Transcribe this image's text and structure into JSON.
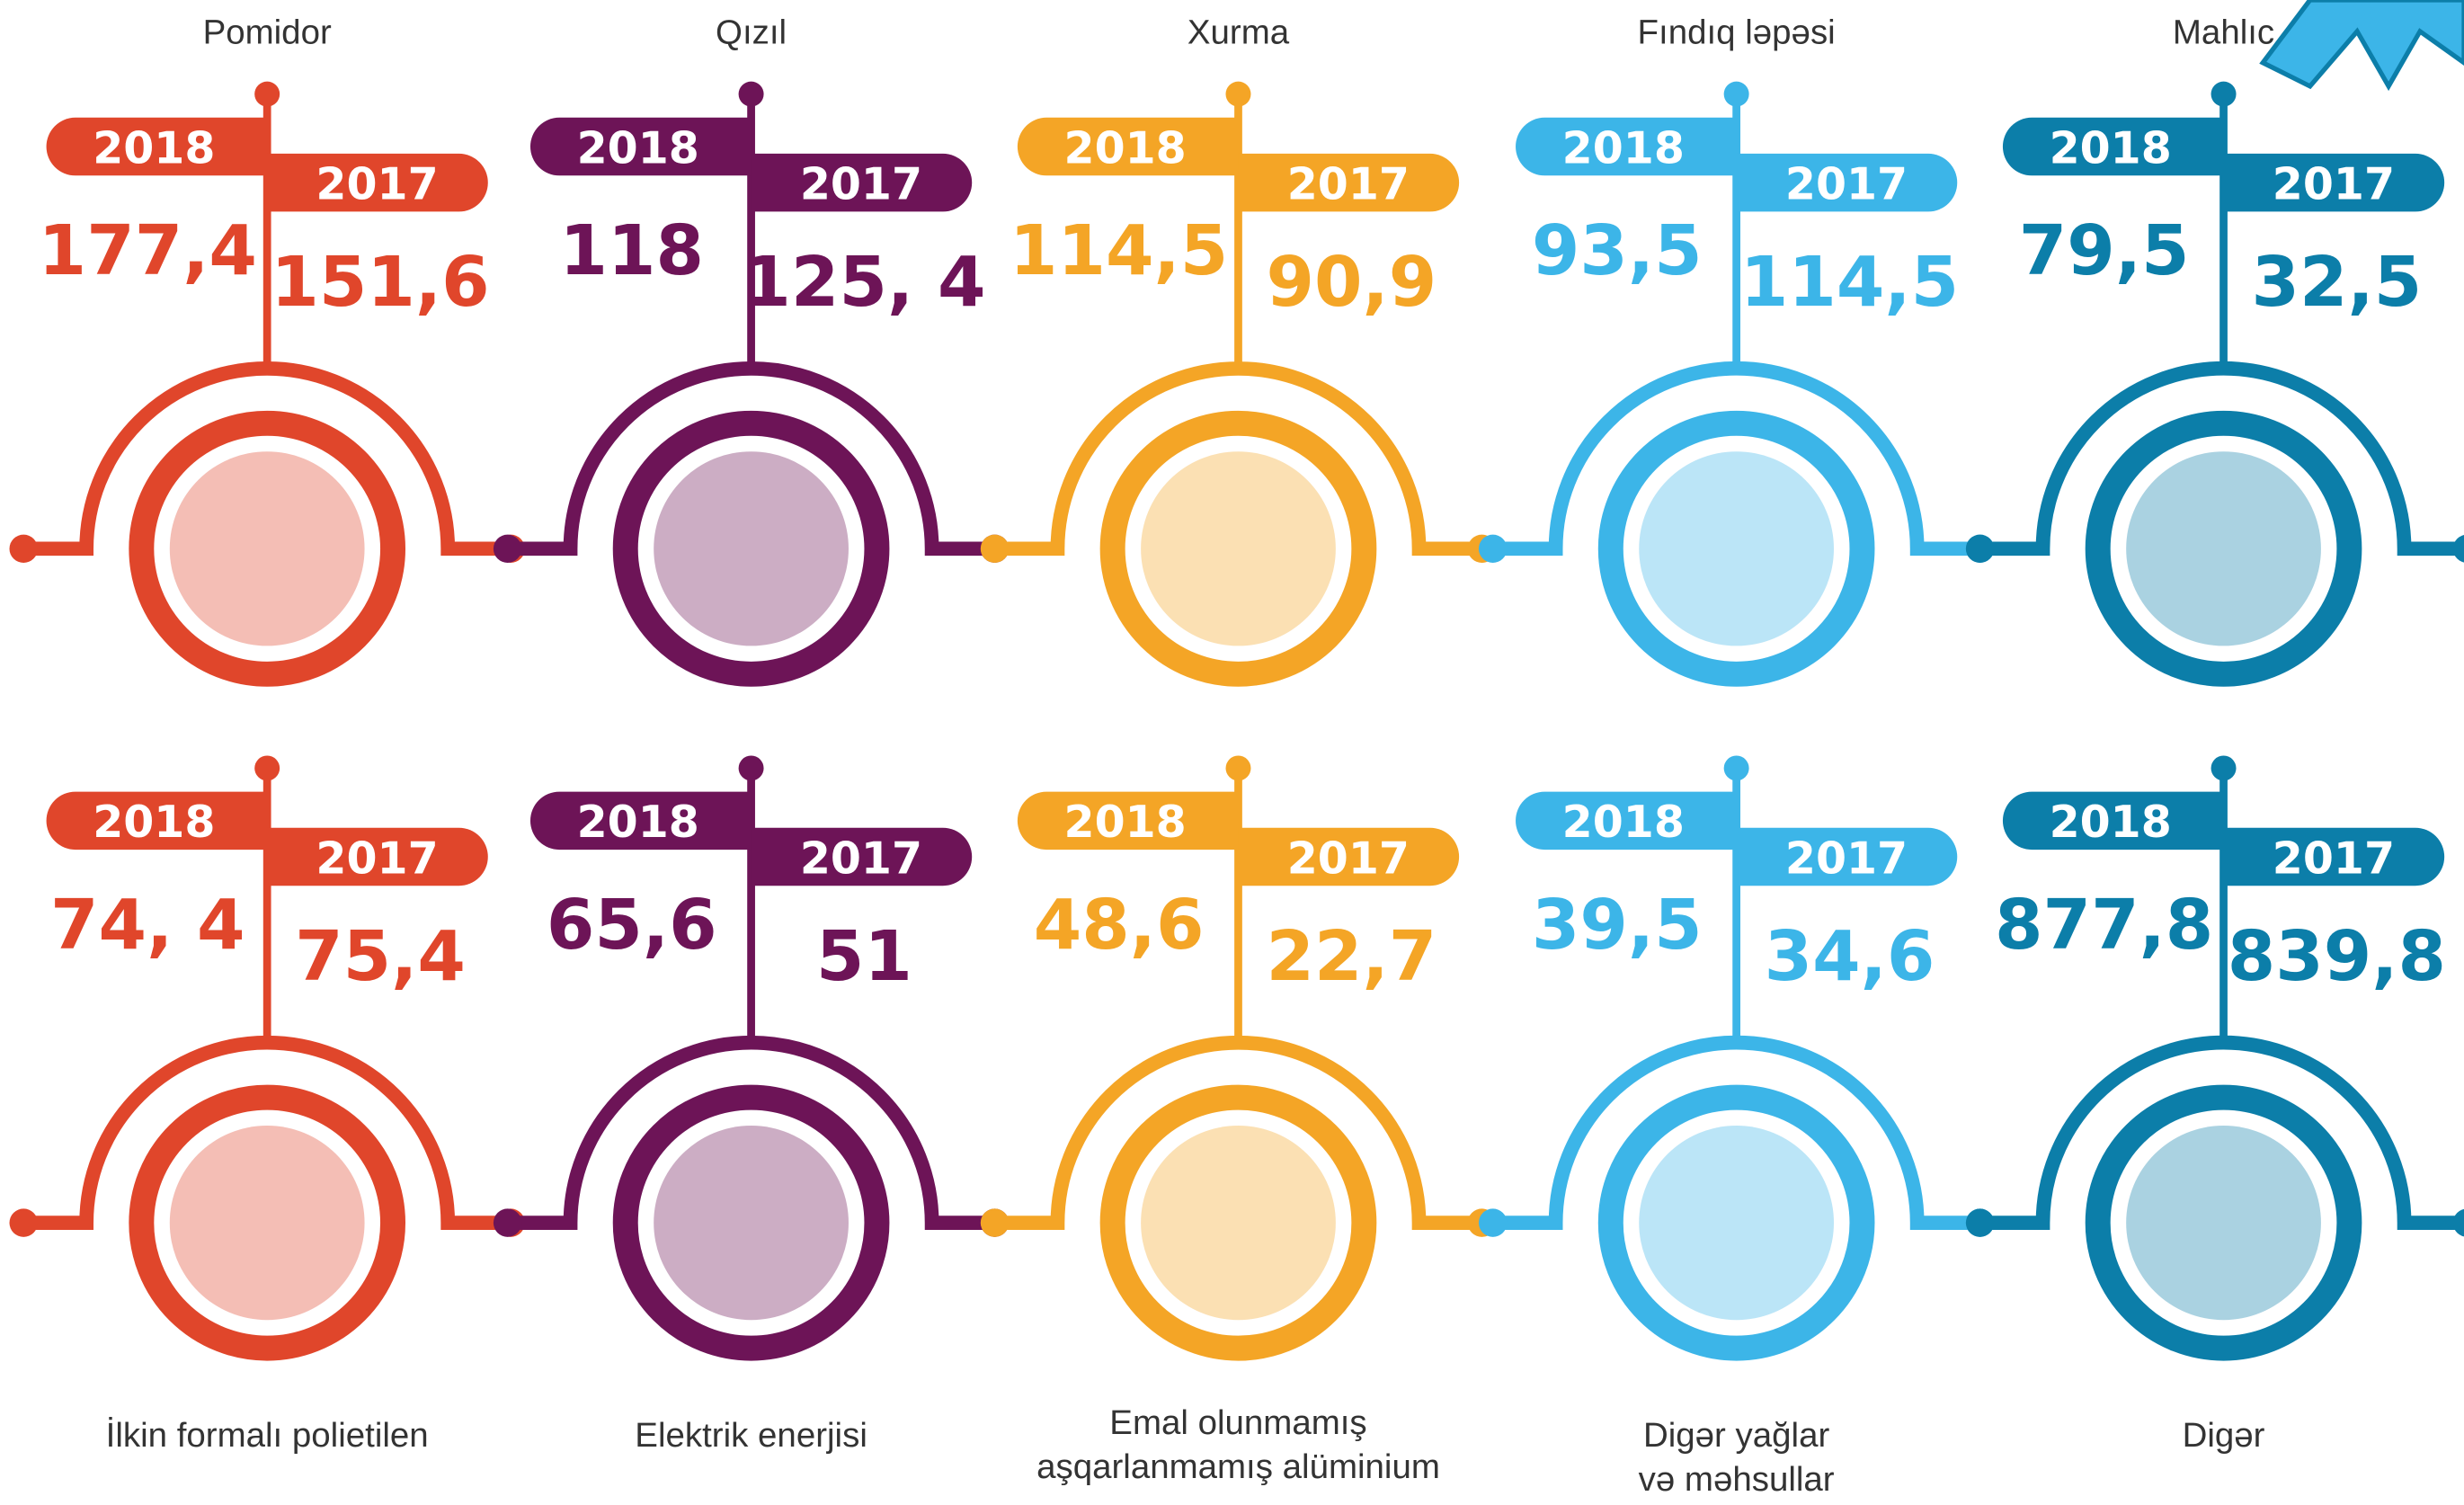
{
  "items": [
    {
      "label_lines": [
        "Pomidor"
      ],
      "color": "#e0462b",
      "entries": [
        {
          "year": "2018",
          "value": "177,4"
        },
        {
          "year": "2017",
          "value": "151,6"
        }
      ]
    },
    {
      "label_lines": [
        "Qızıl"
      ],
      "color": "#6d1457",
      "entries": [
        {
          "year": "2018",
          "value": "118"
        },
        {
          "year": "2017",
          "value": "125, 4"
        }
      ]
    },
    {
      "label_lines": [
        "Xurma"
      ],
      "color": "#f4a526",
      "entries": [
        {
          "year": "2018",
          "value": "114,5"
        },
        {
          "year": "2017",
          "value": "90,9"
        }
      ]
    },
    {
      "label_lines": [
        "Fındıq ləpəsi"
      ],
      "color": "#3cb5e8",
      "entries": [
        {
          "year": "2018",
          "value": "93,5"
        },
        {
          "year": "2017",
          "value": "114,5"
        }
      ]
    },
    {
      "label_lines": [
        "Mahlıc"
      ],
      "color": "#0c7ea9",
      "entries": [
        {
          "year": "2018",
          "value": "79,5"
        },
        {
          "year": "2017",
          "value": "32,5"
        }
      ]
    },
    {
      "label_lines": [
        "İlkin formalı polietilen"
      ],
      "color": "#e0462b",
      "entries": [
        {
          "year": "2018",
          "value": "74, 4"
        },
        {
          "year": "2017",
          "value": "75,4"
        }
      ]
    },
    {
      "label_lines": [
        "Elektrik enerjisi"
      ],
      "color": "#6d1457",
      "entries": [
        {
          "year": "2018",
          "value": "65,6"
        },
        {
          "year": "2017",
          "value": "51"
        }
      ]
    },
    {
      "label_lines": [
        "Emal olunmamış",
        "aşqarlanmamış alüminium"
      ],
      "color": "#f4a526",
      "entries": [
        {
          "year": "2018",
          "value": "48,6"
        },
        {
          "year": "2017",
          "value": "22,7"
        }
      ]
    },
    {
      "label_lines": [
        "Digər yağlar",
        "və məhsullar"
      ],
      "color": "#3cb5e8",
      "entries": [
        {
          "year": "2018",
          "value": "39,5"
        },
        {
          "year": "2017",
          "value": "34,6"
        }
      ]
    },
    {
      "label_lines": [
        "Digər"
      ],
      "color": "#0c7ea9",
      "entries": [
        {
          "year": "2018",
          "value": "877,8"
        },
        {
          "year": "2017",
          "value": "839,8"
        }
      ]
    }
  ]
}
